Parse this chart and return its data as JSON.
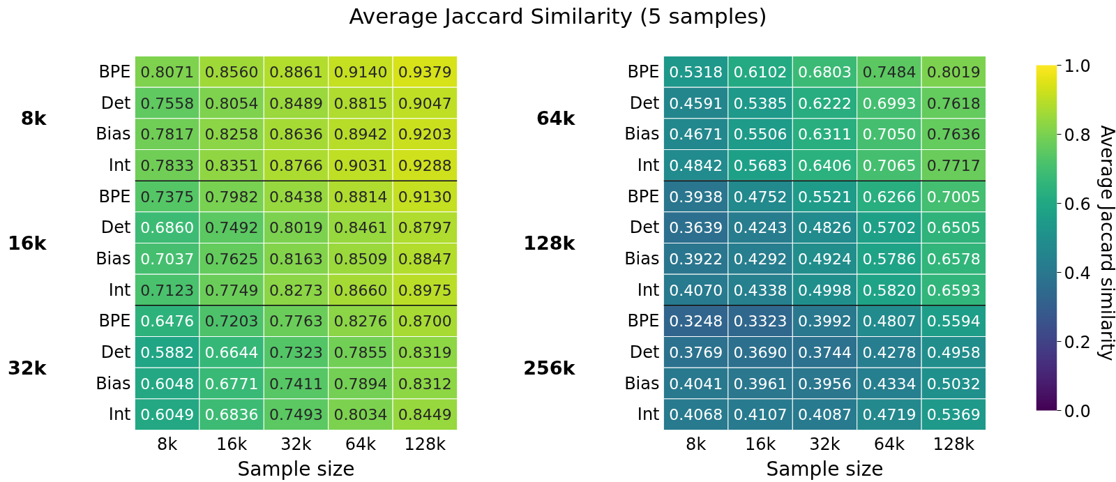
{
  "chart_data": [
    {
      "type": "heatmap",
      "title": "Average Jaccard Similarity (5 samples)",
      "xlabel": "Sample size",
      "categories": [
        "8k",
        "16k",
        "32k",
        "64k",
        "128k"
      ],
      "y_categories": [
        "BPE",
        "Det",
        "Bias",
        "Int",
        "BPE",
        "Det",
        "Bias",
        "Int",
        "BPE",
        "Det",
        "Bias",
        "Int"
      ],
      "annotations": [
        "8k",
        "16k",
        "32k"
      ],
      "data_labels": true,
      "cells": [
        [
          0.8071,
          0.856,
          0.8861,
          0.914,
          0.9379
        ],
        [
          0.7558,
          0.8054,
          0.8489,
          0.8815,
          0.9047
        ],
        [
          0.7817,
          0.8258,
          0.8636,
          0.8942,
          0.9203
        ],
        [
          0.7833,
          0.8351,
          0.8766,
          0.9031,
          0.9288
        ],
        [
          0.7375,
          0.7982,
          0.8438,
          0.8814,
          0.913
        ],
        [
          0.686,
          0.7492,
          0.8019,
          0.8461,
          0.8797
        ],
        [
          0.7037,
          0.7625,
          0.8163,
          0.8509,
          0.8847
        ],
        [
          0.7123,
          0.7749,
          0.8273,
          0.866,
          0.8975
        ],
        [
          0.6476,
          0.7203,
          0.7763,
          0.8276,
          0.87
        ],
        [
          0.5882,
          0.6644,
          0.7323,
          0.7855,
          0.8319
        ],
        [
          0.6048,
          0.6771,
          0.7411,
          0.7894,
          0.8312
        ],
        [
          0.6049,
          0.6836,
          0.7493,
          0.8034,
          0.8449
        ]
      ],
      "cell_labels": [
        [
          "0.8071",
          "0.8560",
          "0.8861",
          "0.9140",
          "0.9379"
        ],
        [
          "0.7558",
          "0.8054",
          "0.8489",
          "0.8815",
          "0.9047"
        ],
        [
          "0.7817",
          "0.8258",
          "0.8636",
          "0.8942",
          "0.9203"
        ],
        [
          "0.7833",
          "0.8351",
          "0.8766",
          "0.9031",
          "0.9288"
        ],
        [
          "0.7375",
          "0.7982",
          "0.8438",
          "0.8814",
          "0.9130"
        ],
        [
          "0.6860",
          "0.7492",
          "0.8019",
          "0.8461",
          "0.8797"
        ],
        [
          "0.7037",
          "0.7625",
          "0.8163",
          "0.8509",
          "0.8847"
        ],
        [
          "0.7123",
          "0.7749",
          "0.8273",
          "0.8660",
          "0.8975"
        ],
        [
          "0.6476",
          "0.7203",
          "0.7763",
          "0.8276",
          "0.8700"
        ],
        [
          "0.5882",
          "0.6644",
          "0.7323",
          "0.7855",
          "0.8319"
        ],
        [
          "0.6048",
          "0.6771",
          "0.7411",
          "0.7894",
          "0.8312"
        ],
        [
          "0.6049",
          "0.6836",
          "0.7493",
          "0.8034",
          "0.8449"
        ]
      ]
    },
    {
      "type": "heatmap",
      "xlabel": "Sample size",
      "categories": [
        "8k",
        "16k",
        "32k",
        "64k",
        "128k"
      ],
      "y_categories": [
        "BPE",
        "Det",
        "Bias",
        "Int",
        "BPE",
        "Det",
        "Bias",
        "Int",
        "BPE",
        "Det",
        "Bias",
        "Int"
      ],
      "annotations": [
        "64k",
        "128k",
        "256k"
      ],
      "data_labels": true,
      "clim": [
        0,
        1
      ],
      "cticks": [
        {
          "value": 0,
          "label": "0.0"
        },
        0.2,
        0.4,
        0.6,
        0.8,
        {
          "value": 1,
          "label": "1.0"
        }
      ],
      "clabel": "Average Jaccard similarity",
      "cells": [
        [
          0.5318,
          0.6102,
          0.6803,
          0.7484,
          0.8019
        ],
        [
          0.4591,
          0.5385,
          0.6222,
          0.6993,
          0.7618
        ],
        [
          0.4671,
          0.5506,
          0.6311,
          0.705,
          0.7636
        ],
        [
          0.4842,
          0.5683,
          0.6406,
          0.7065,
          0.7717
        ],
        [
          0.3938,
          0.4752,
          0.5521,
          0.6266,
          0.7005
        ],
        [
          0.3639,
          0.4243,
          0.4826,
          0.5702,
          0.6505
        ],
        [
          0.3922,
          0.4292,
          0.4924,
          0.5786,
          0.6578
        ],
        [
          0.407,
          0.4338,
          0.4998,
          0.582,
          0.6593
        ],
        [
          0.3248,
          0.3323,
          0.3992,
          0.4807,
          0.5594
        ],
        [
          0.3769,
          0.369,
          0.3744,
          0.4278,
          0.4958
        ],
        [
          0.4041,
          0.3961,
          0.3956,
          0.4334,
          0.5032
        ],
        [
          0.4068,
          0.4107,
          0.4087,
          0.4719,
          0.5369
        ]
      ],
      "cell_labels": [
        [
          "0.5318",
          "0.6102",
          "0.6803",
          "0.7484",
          "0.8019"
        ],
        [
          "0.4591",
          "0.5385",
          "0.6222",
          "0.6993",
          "0.7618"
        ],
        [
          "0.4671",
          "0.5506",
          "0.6311",
          "0.7050",
          "0.7636"
        ],
        [
          "0.4842",
          "0.5683",
          "0.6406",
          "0.7065",
          "0.7717"
        ],
        [
          "0.3938",
          "0.4752",
          "0.5521",
          "0.6266",
          "0.7005"
        ],
        [
          "0.3639",
          "0.4243",
          "0.4826",
          "0.5702",
          "0.6505"
        ],
        [
          "0.3922",
          "0.4292",
          "0.4924",
          "0.5786",
          "0.6578"
        ],
        [
          "0.4070",
          "0.4338",
          "0.4998",
          "0.5820",
          "0.6593"
        ],
        [
          "0.3248",
          "0.3323",
          "0.3992",
          "0.4807",
          "0.5594"
        ],
        [
          "0.3769",
          "0.3690",
          "0.3744",
          "0.4278",
          "0.4958"
        ],
        [
          "0.4041",
          "0.3961",
          "0.3956",
          "0.4334",
          "0.5032"
        ],
        [
          "0.4068",
          "0.4107",
          "0.4087",
          "0.4719",
          "0.5369"
        ]
      ]
    }
  ]
}
